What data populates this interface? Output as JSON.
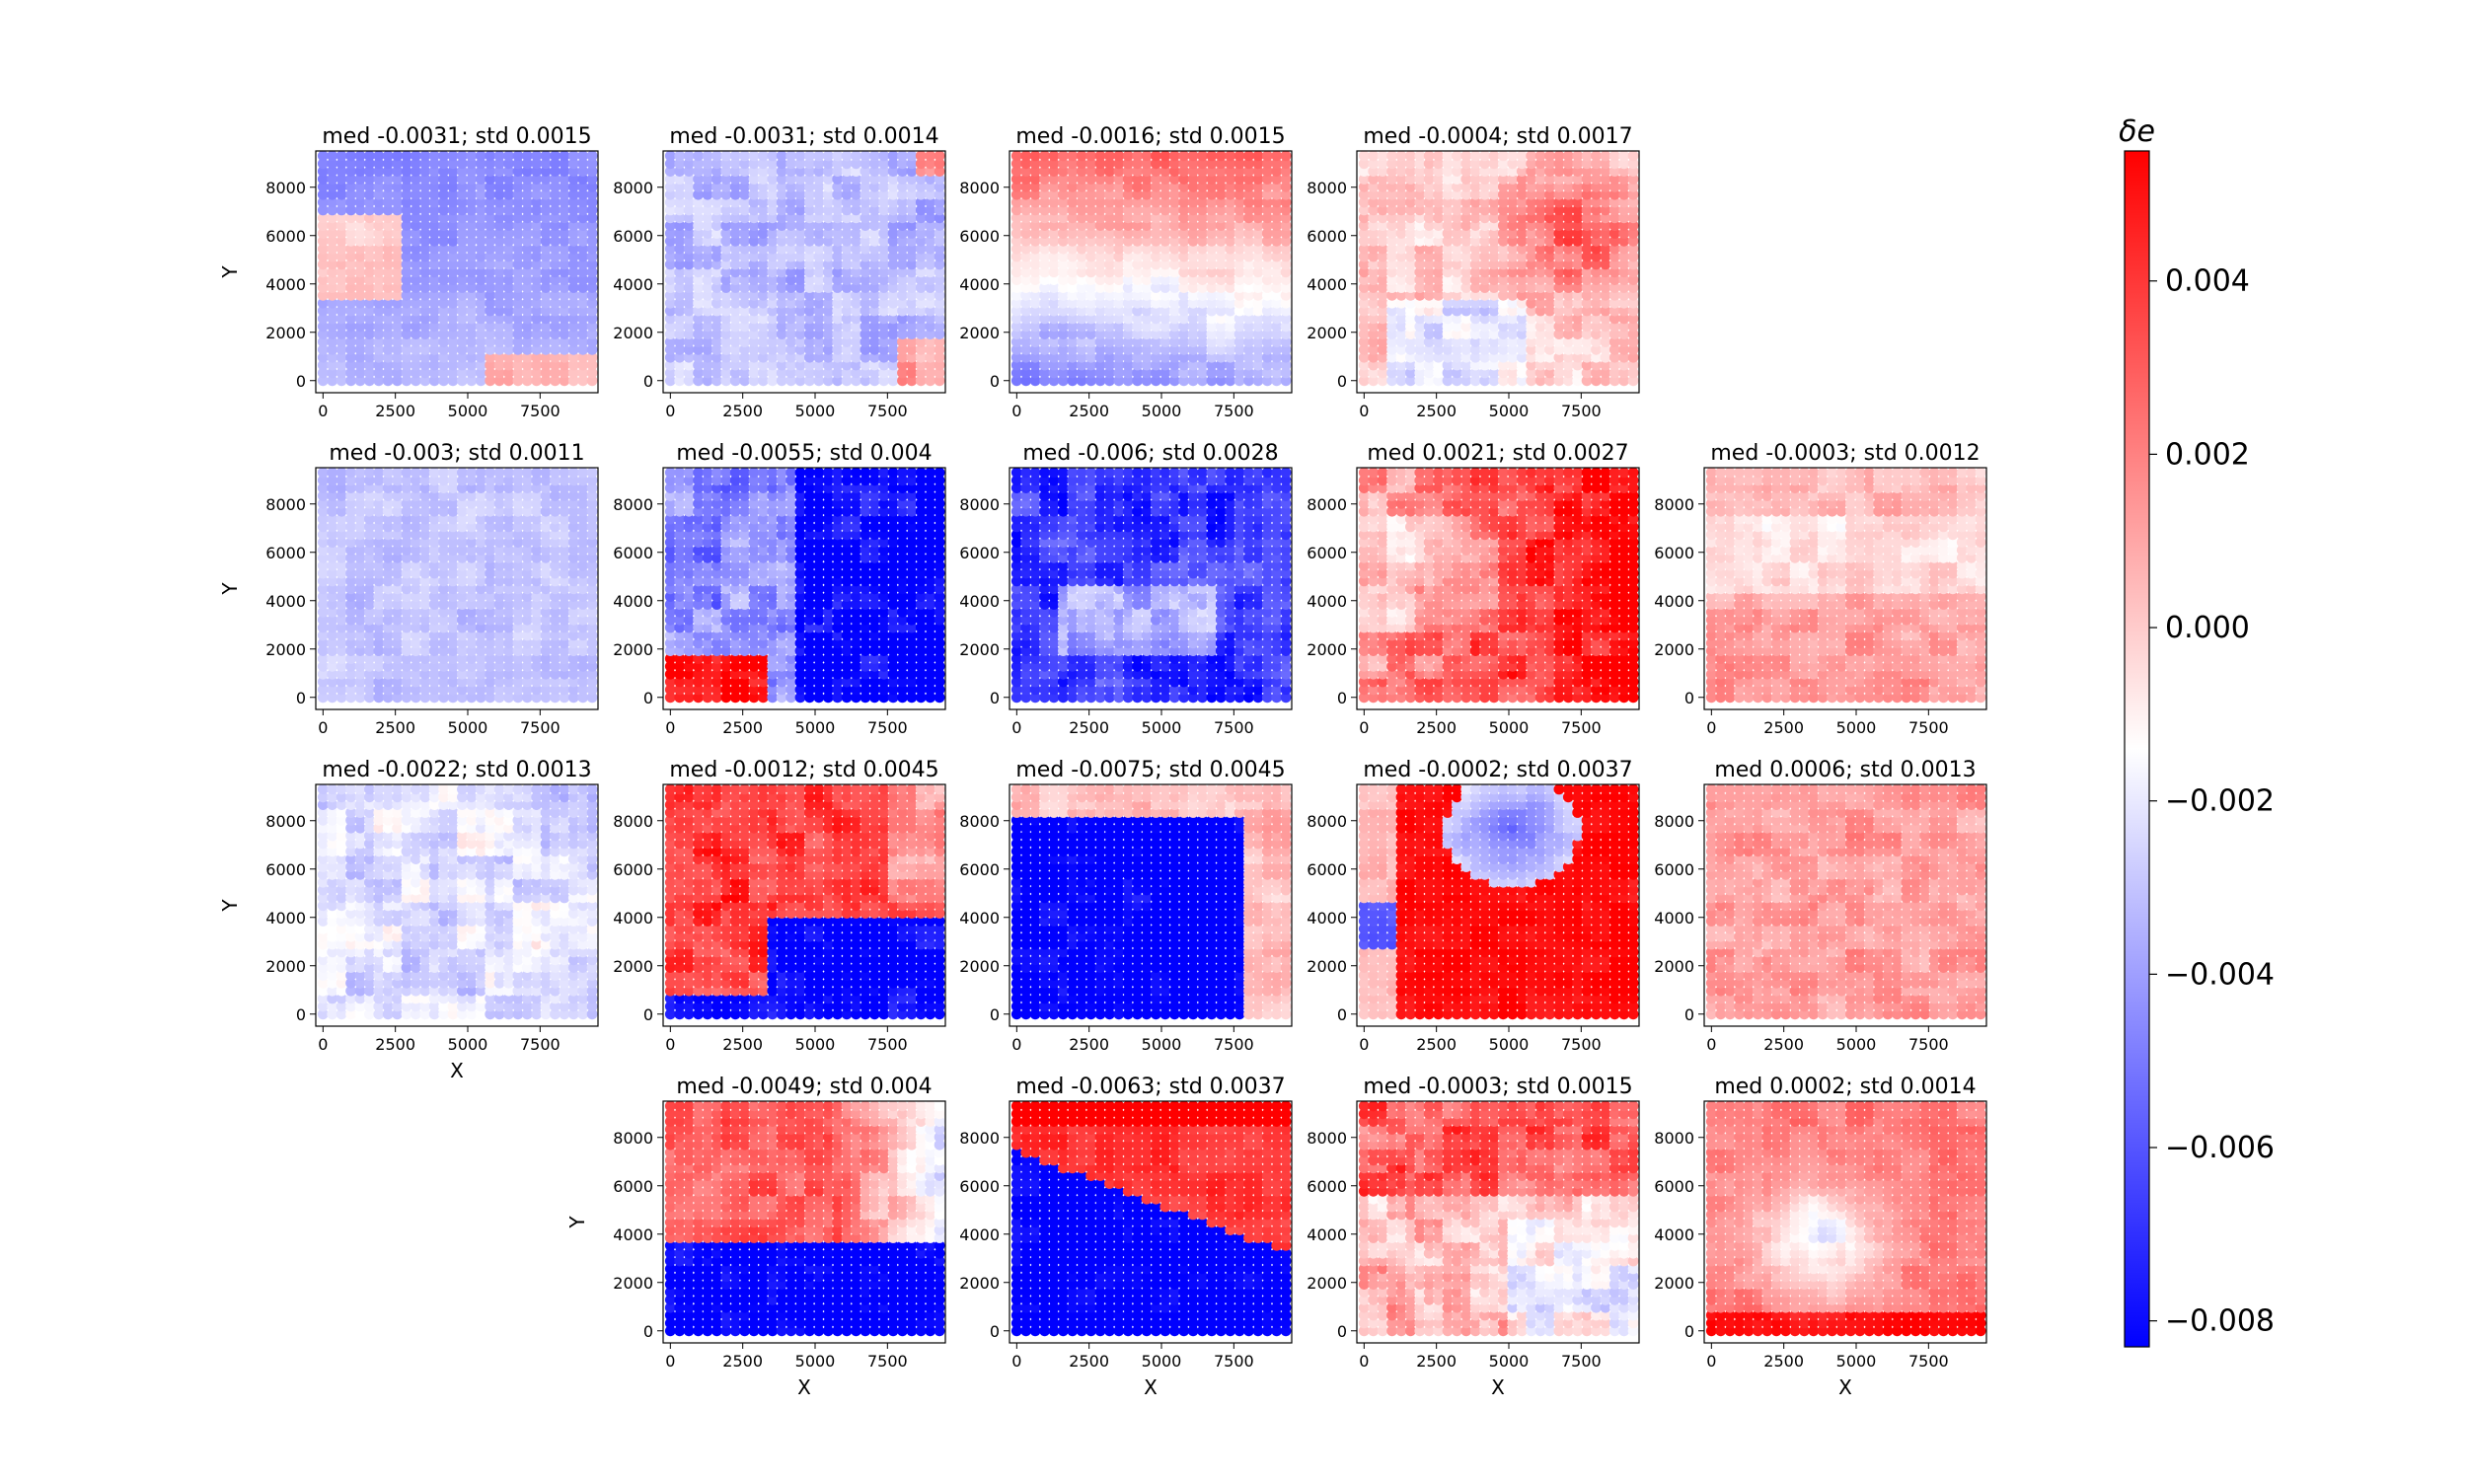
{
  "chart_data": {
    "type": "heatmap",
    "description_free": true,
    "x_ticks": [
      0,
      2500,
      5000,
      7500
    ],
    "y_ticks": [
      0,
      2000,
      4000,
      6000,
      8000
    ],
    "x_tick_labels": [
      "0",
      "2500",
      "5000",
      "7500"
    ],
    "y_tick_labels": [
      "0",
      "2000",
      "4000",
      "6000",
      "8000"
    ],
    "xlabel": "X",
    "ylabel": "Y",
    "xlim": [
      -250,
      9500
    ],
    "ylim": [
      -500,
      9500
    ],
    "colorbar": {
      "label": "δe",
      "min": -0.0083,
      "max": 0.0055,
      "ticks": [
        0.004,
        0.002,
        0.0,
        -0.002,
        -0.004,
        -0.006,
        -0.008
      ],
      "tick_labels": [
        "0.004",
        "0.002",
        "0.000",
        "−0.002",
        "−0.004",
        "−0.006",
        "−0.008"
      ],
      "colormap": "bwr",
      "low_color": "#0000ff",
      "mid_color": "#ffffff",
      "high_color": "#ff0000"
    },
    "panels": [
      {
        "row": 0,
        "col": 0,
        "title": "med -0.0031; std 0.0015",
        "median": -0.0031,
        "std": 0.0015,
        "pattern": "p00"
      },
      {
        "row": 0,
        "col": 1,
        "title": "med -0.0031; std 0.0014",
        "median": -0.0031,
        "std": 0.0014,
        "pattern": "p01"
      },
      {
        "row": 0,
        "col": 2,
        "title": "med -0.0016; std 0.0015",
        "median": -0.0016,
        "std": 0.0015,
        "pattern": "p02"
      },
      {
        "row": 0,
        "col": 3,
        "title": "med -0.0004; std 0.0017",
        "median": -0.0004,
        "std": 0.0017,
        "pattern": "p03"
      },
      {
        "row": 1,
        "col": 0,
        "title": "med -0.003; std 0.0011",
        "median": -0.003,
        "std": 0.0011,
        "pattern": "p10"
      },
      {
        "row": 1,
        "col": 1,
        "title": "med -0.0055; std 0.004",
        "median": -0.0055,
        "std": 0.004,
        "pattern": "p11"
      },
      {
        "row": 1,
        "col": 2,
        "title": "med -0.006; std 0.0028",
        "median": -0.006,
        "std": 0.0028,
        "pattern": "p12"
      },
      {
        "row": 1,
        "col": 3,
        "title": "med 0.0021; std 0.0027",
        "median": 0.0021,
        "std": 0.0027,
        "pattern": "p13"
      },
      {
        "row": 1,
        "col": 4,
        "title": "med -0.0003; std 0.0012",
        "median": -0.0003,
        "std": 0.0012,
        "pattern": "p14"
      },
      {
        "row": 2,
        "col": 0,
        "title": "med -0.0022; std 0.0013",
        "median": -0.0022,
        "std": 0.0013,
        "pattern": "p20"
      },
      {
        "row": 2,
        "col": 1,
        "title": "med -0.0012; std 0.0045",
        "median": -0.0012,
        "std": 0.0045,
        "pattern": "p21"
      },
      {
        "row": 2,
        "col": 2,
        "title": "med -0.0075; std 0.0045",
        "median": -0.0075,
        "std": 0.0045,
        "pattern": "p22"
      },
      {
        "row": 2,
        "col": 3,
        "title": "med -0.0002; std 0.0037",
        "median": -0.0002,
        "std": 0.0037,
        "pattern": "p23"
      },
      {
        "row": 2,
        "col": 4,
        "title": "med 0.0006; std 0.0013",
        "median": 0.0006,
        "std": 0.0013,
        "pattern": "p24"
      },
      {
        "row": 3,
        "col": 1,
        "title": "med -0.0049; std 0.004",
        "median": -0.0049,
        "std": 0.004,
        "pattern": "p31"
      },
      {
        "row": 3,
        "col": 2,
        "title": "med -0.0063; std 0.0037",
        "median": -0.0063,
        "std": 0.0037,
        "pattern": "p32"
      },
      {
        "row": 3,
        "col": 3,
        "title": "med -0.0003; std 0.0015",
        "median": -0.0003,
        "std": 0.0015,
        "pattern": "p33"
      },
      {
        "row": 3,
        "col": 4,
        "title": "med 0.0002; std 0.0014",
        "median": 0.0002,
        "std": 0.0014,
        "pattern": "p34"
      }
    ]
  }
}
